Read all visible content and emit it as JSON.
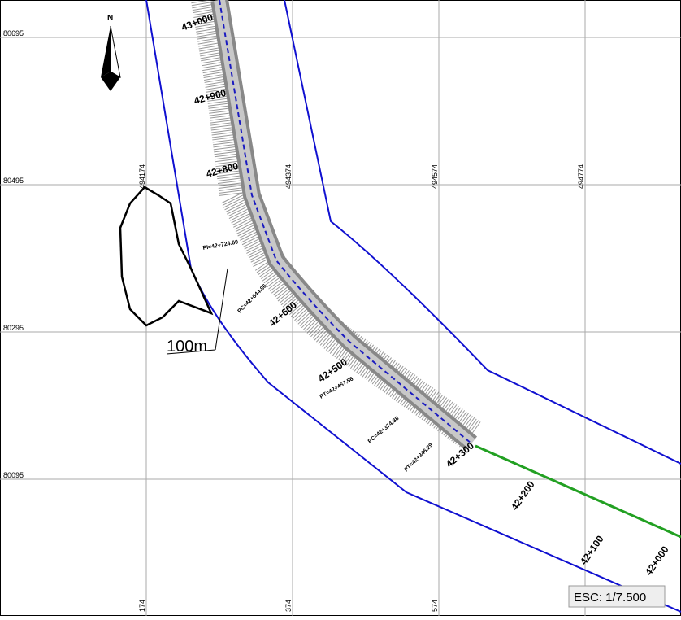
{
  "north": "N",
  "northings": [
    "80695",
    "80495",
    "80295",
    "80095"
  ],
  "eastings": [
    "494174",
    "494374",
    "494574",
    "494774"
  ],
  "bottom_eastings": [
    "174",
    "374",
    "574"
  ],
  "stations": [
    "43+000",
    "42+900",
    "42+800",
    "42+600",
    "42+500",
    "42+300",
    "42+200",
    "42+100",
    "42+000"
  ],
  "curve_labels": [
    "PI=42+724.60",
    "PC=42+644.86",
    "PT=42+457.56",
    "PC=42+374.38",
    "PT=42+346.29"
  ],
  "scale_bar": "100m",
  "scale": "ESC: 1/7.500"
}
